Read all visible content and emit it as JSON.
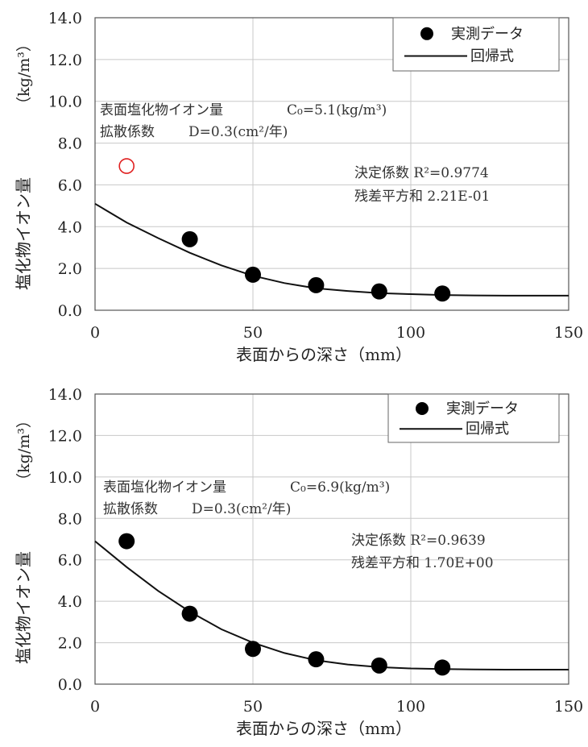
{
  "chart_data": [
    {
      "type": "scatter",
      "xlabel": "表面からの深さ（mm）",
      "ylabel": "塩化物イオン量",
      "ylabel_unit": "（kg/m³）",
      "xlim": [
        0,
        150
      ],
      "ylim": [
        0,
        14
      ],
      "xticks": [
        "0",
        "50",
        "100",
        "150"
      ],
      "yticks": [
        "0.0",
        "2.0",
        "4.0",
        "6.0",
        "8.0",
        "10.0",
        "12.0",
        "14.0"
      ],
      "grid": true,
      "legend": {
        "position": "top-right",
        "marker_label": "実測データ",
        "line_label": "回帰式"
      },
      "series": [
        {
          "name": "実測データ",
          "x": [
            30,
            50,
            70,
            90,
            110
          ],
          "y": [
            3.4,
            1.7,
            1.2,
            0.9,
            0.8
          ]
        },
        {
          "name": "回帰式",
          "type": "line",
          "x": [
            0,
            10,
            20,
            30,
            40,
            50,
            60,
            70,
            80,
            90,
            100,
            110,
            120,
            130,
            140,
            150
          ],
          "y": [
            5.1,
            4.2,
            3.45,
            2.75,
            2.15,
            1.65,
            1.3,
            1.05,
            0.92,
            0.82,
            0.77,
            0.73,
            0.71,
            0.7,
            0.7,
            0.7
          ]
        }
      ],
      "outlier": {
        "x": 10,
        "y": 6.9,
        "color": "#e02020"
      },
      "annotations": {
        "surface_label": "表面塩化物イオン量",
        "surface_value": "C₀=5.1(kg/m³)",
        "diffusion_label": "拡散係数",
        "diffusion_value": "D=0.3(cm²/年)",
        "r2": "決定係数 R²=0.9774",
        "rss": "残差平方和 2.21E-01"
      }
    },
    {
      "type": "scatter",
      "xlabel": "表面からの深さ（mm）",
      "ylabel": "塩化物イオン量",
      "ylabel_unit": "（kg/m³）",
      "xlim": [
        0,
        150
      ],
      "ylim": [
        0,
        14
      ],
      "xticks": [
        "0",
        "50",
        "100",
        "150"
      ],
      "yticks": [
        "0.0",
        "2.0",
        "4.0",
        "6.0",
        "8.0",
        "10.0",
        "12.0",
        "14.0"
      ],
      "grid": true,
      "legend": {
        "position": "top-right",
        "marker_label": "実測データ",
        "line_label": "回帰式"
      },
      "series": [
        {
          "name": "実測データ",
          "x": [
            10,
            30,
            50,
            70,
            90,
            110
          ],
          "y": [
            6.9,
            3.4,
            1.7,
            1.2,
            0.9,
            0.8
          ]
        },
        {
          "name": "回帰式",
          "type": "line",
          "x": [
            0,
            10,
            20,
            30,
            40,
            50,
            60,
            70,
            80,
            90,
            100,
            110,
            120,
            130,
            140,
            150
          ],
          "y": [
            6.9,
            5.65,
            4.5,
            3.5,
            2.65,
            2.0,
            1.5,
            1.15,
            0.95,
            0.82,
            0.76,
            0.73,
            0.71,
            0.7,
            0.7,
            0.7
          ]
        }
      ],
      "annotations": {
        "surface_label": "表面塩化物イオン量",
        "surface_value": "C₀=6.9(kg/m³)",
        "diffusion_label": "拡散係数",
        "diffusion_value": "D=0.3(cm²/年)",
        "r2": "決定係数 R²=0.9639",
        "rss": "残差平方和 1.70E+00"
      }
    }
  ]
}
